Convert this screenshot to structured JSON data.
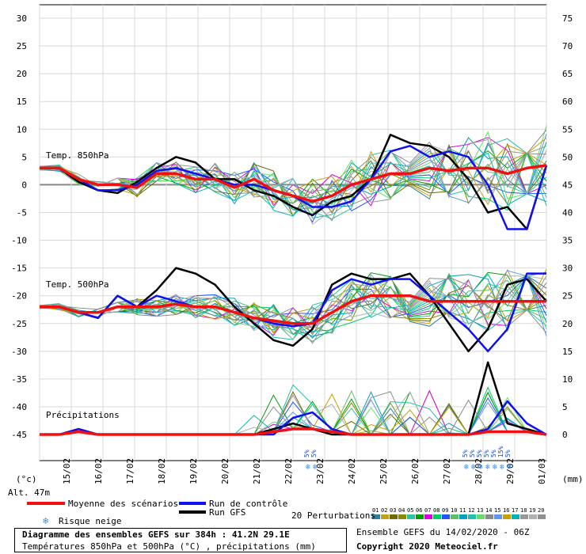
{
  "chart_data": {
    "type": "line",
    "x_ticks": [
      "15/02",
      "16/02",
      "17/02",
      "18/02",
      "19/02",
      "20/02",
      "21/02",
      "22/02",
      "23/02",
      "24/02",
      "25/02",
      "26/02",
      "27/02",
      "28/02",
      "29/02",
      "01/03"
    ],
    "left_axis": {
      "label": "(°c)",
      "ticks": [
        30,
        25,
        20,
        15,
        10,
        5,
        0,
        -5,
        -10,
        -15,
        -20,
        -25,
        -30,
        -35,
        -40,
        -45
      ]
    },
    "right_axis": {
      "label": "(mm)",
      "ticks": [
        75,
        70,
        65,
        60,
        55,
        50,
        45,
        40,
        35,
        30,
        25,
        20,
        15,
        10,
        5,
        0
      ]
    },
    "panels": [
      {
        "title": "Temp. 850hPa",
        "unit": "°C",
        "mean": [
          3,
          3,
          1,
          0,
          0,
          -0.5,
          2,
          2,
          1,
          1,
          -0.5,
          1,
          -1,
          -2,
          -3,
          -2,
          0,
          1,
          2,
          2,
          3,
          2.5,
          3,
          3,
          2,
          3,
          3.5
        ],
        "gfs": [
          3,
          3,
          0.5,
          -1,
          -1.5,
          0.5,
          3,
          5,
          4,
          1,
          1,
          -1,
          -2,
          -4,
          -5.5,
          -3,
          -2,
          1,
          9,
          7.5,
          7,
          5,
          1,
          -5,
          -4,
          -8,
          3.5
        ],
        "control": [
          3,
          3,
          1,
          -1,
          -1,
          0,
          2.5,
          3,
          2,
          1,
          0,
          0,
          -1,
          -2,
          -4,
          -4,
          -3,
          1,
          6,
          7,
          5,
          6,
          5,
          0,
          -8,
          -8,
          3.5
        ]
      },
      {
        "title": "Temp. 500hPa",
        "unit": "°C",
        "mean": [
          -22,
          -22,
          -23,
          -23,
          -22,
          -22,
          -22,
          -21.5,
          -22,
          -22,
          -23,
          -24,
          -24.5,
          -25,
          -25,
          -23,
          -21,
          -20,
          -20,
          -20,
          -21,
          -21,
          -21,
          -21,
          -21,
          -21,
          -21
        ],
        "gfs": [
          -22,
          -22,
          -23,
          -24,
          -20,
          -22,
          -19,
          -15,
          -16,
          -18,
          -22,
          -25,
          -28,
          -29,
          -26,
          -18,
          -16,
          -17,
          -17,
          -16,
          -20,
          -25,
          -30,
          -26,
          -18,
          -17,
          -21
        ],
        "control": [
          -22,
          -22,
          -23,
          -24,
          -20,
          -22,
          -20,
          -21,
          -22,
          -22,
          -23,
          -24,
          -25,
          -25.5,
          -25,
          -19,
          -17,
          -18,
          -17,
          -17,
          -20,
          -23,
          -26,
          -30,
          -26,
          -16,
          -16
        ]
      },
      {
        "title": "Précipitations",
        "unit": "mm",
        "mean": [
          0,
          0,
          0.5,
          0,
          0,
          0,
          0,
          0,
          0,
          0,
          0,
          0,
          0.5,
          1,
          1,
          0.5,
          0,
          0,
          0,
          0,
          0,
          0,
          0,
          0.5,
          0.5,
          0.5,
          0
        ],
        "gfs": [
          0,
          0,
          1,
          0,
          0,
          0,
          0,
          0,
          0,
          0,
          0,
          0,
          1,
          2,
          1,
          0,
          0,
          0,
          0,
          0,
          0,
          0,
          0,
          13,
          2,
          1,
          0
        ],
        "control": [
          0,
          0,
          1,
          0,
          0,
          0,
          0,
          0,
          0,
          0,
          0,
          0,
          0,
          3,
          4,
          1,
          0,
          0,
          0,
          0,
          0,
          0,
          0,
          1,
          6,
          2,
          0
        ]
      }
    ],
    "snow_risk": [
      {
        "date_index": 8.5,
        "labels": [
          "5%",
          "5%"
        ]
      },
      {
        "date_index": 13.5,
        "labels": [
          "5%",
          "5%",
          "5%",
          "5%",
          "5%",
          "15%",
          "5%"
        ]
      }
    ],
    "altitude": "Alt. 47m",
    "legend": {
      "mean": "Moyenne des scénarios",
      "control": "Run de contrôle",
      "gfs": "Run GFS",
      "snow": "Risque neige",
      "perturbations": "20 Perturbations",
      "perturbation_numbers": [
        "01",
        "02",
        "03",
        "04",
        "05",
        "06",
        "07",
        "08",
        "09",
        "10",
        "11",
        "12",
        "13",
        "14",
        "15",
        "16",
        "17",
        "18",
        "19",
        "20"
      ],
      "perturbation_colors": [
        "#2a7f9e",
        "#bfa21a",
        "#6b6b00",
        "#8a8a00",
        "#29c6a0",
        "#00a000",
        "#dd00dd",
        "#00cc66",
        "#2255ff",
        "#5fbf5f",
        "#00a0c0",
        "#1ec0b0",
        "#66dd66",
        "#8a8a8a",
        "#6495ed",
        "#c7a000",
        "#00b4b4",
        "#999999",
        "#b0b0b0",
        "#909090"
      ]
    },
    "series_colors": {
      "mean": "#ee1111",
      "control": "#1111ee",
      "gfs": "#000000"
    }
  },
  "footer": {
    "title": "Diagramme des ensembles GEFS sur 384h : 41.2N 29.1E",
    "subtitle": "Températures 850hPa et 500hPa (°C) , précipitations (mm)",
    "run": "Ensemble GEFS du 14/02/2020 - 06Z",
    "copyright": "Copyright 2020 Meteociel.fr"
  }
}
